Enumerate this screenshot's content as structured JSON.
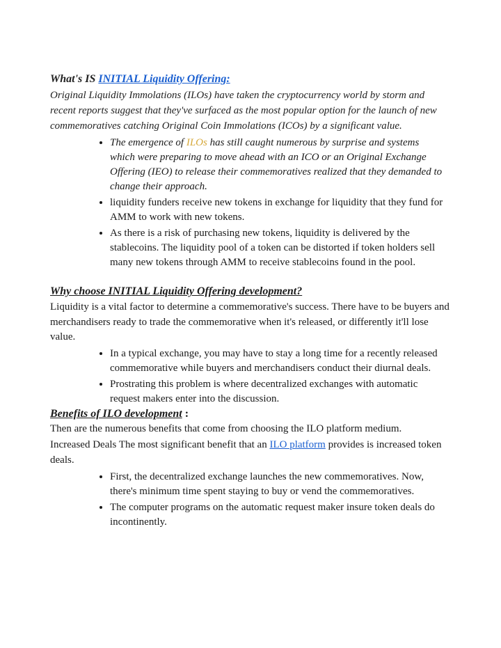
{
  "heading1": {
    "prefix": "What's IS ",
    "linkText": " INITIAL Liquidity Offering:"
  },
  "intro": " Original Liquidity Immolations (ILOs) have taken the cryptocurrency world by storm and recent reports suggest that they've surfaced as the most popular option for the launch of new commemoratives catching Original Coin Immolations (ICOs) by a significant value.",
  "list1": {
    "item1_a": " The emergence of ",
    "item1_link": "ILOs",
    "item1_b": " has still caught numerous by surprise and systems which were preparing to move ahead with an ICO or an Original Exchange Offering (IEO) to release their commemoratives realized that they demanded to change their approach.",
    "item2": " liquidity funders receive new tokens in exchange for liquidity that they fund for AMM to work with new tokens.",
    "item3": "As there is a risk of purchasing new tokens, liquidity is delivered by the stablecoins. The liquidity pool of a token can be distorted if token holders sell many new tokens through AMM to receive stablecoins found in the pool."
  },
  "heading2": "Why choose INITIAL Liquidity Offering development?",
  "para2": " Liquidity is a vital factor to determine a commemorative's success. There have to be buyers and merchandisers ready to trade the commemorative when it's released, or differently it'll lose value.",
  "list2": {
    "item1": " In a typical exchange, you may have to stay a long time for a recently released commemorative while buyers and merchandisers conduct their diurnal deals.",
    "item2": "Prostrating this problem is where decentralized exchanges with automatic request makers enter into the discussion."
  },
  "heading3": {
    "text": " Benefits of ILO development",
    "suffix": " :"
  },
  "para3a": " Then are the numerous benefits that come from choosing the ILO platform medium.",
  "para3b_a": " Increased Deals The most significant benefit that an ",
  "para3b_link": "ILO platform",
  "para3b_b": " provides is increased token deals.",
  "list3": {
    "item1": "First, the decentralized exchange launches the new commemoratives. Now, there's minimum time spent staying to buy or vend the commemoratives.",
    "item2": "The computer programs on the automatic request maker insure token deals do incontinently."
  }
}
